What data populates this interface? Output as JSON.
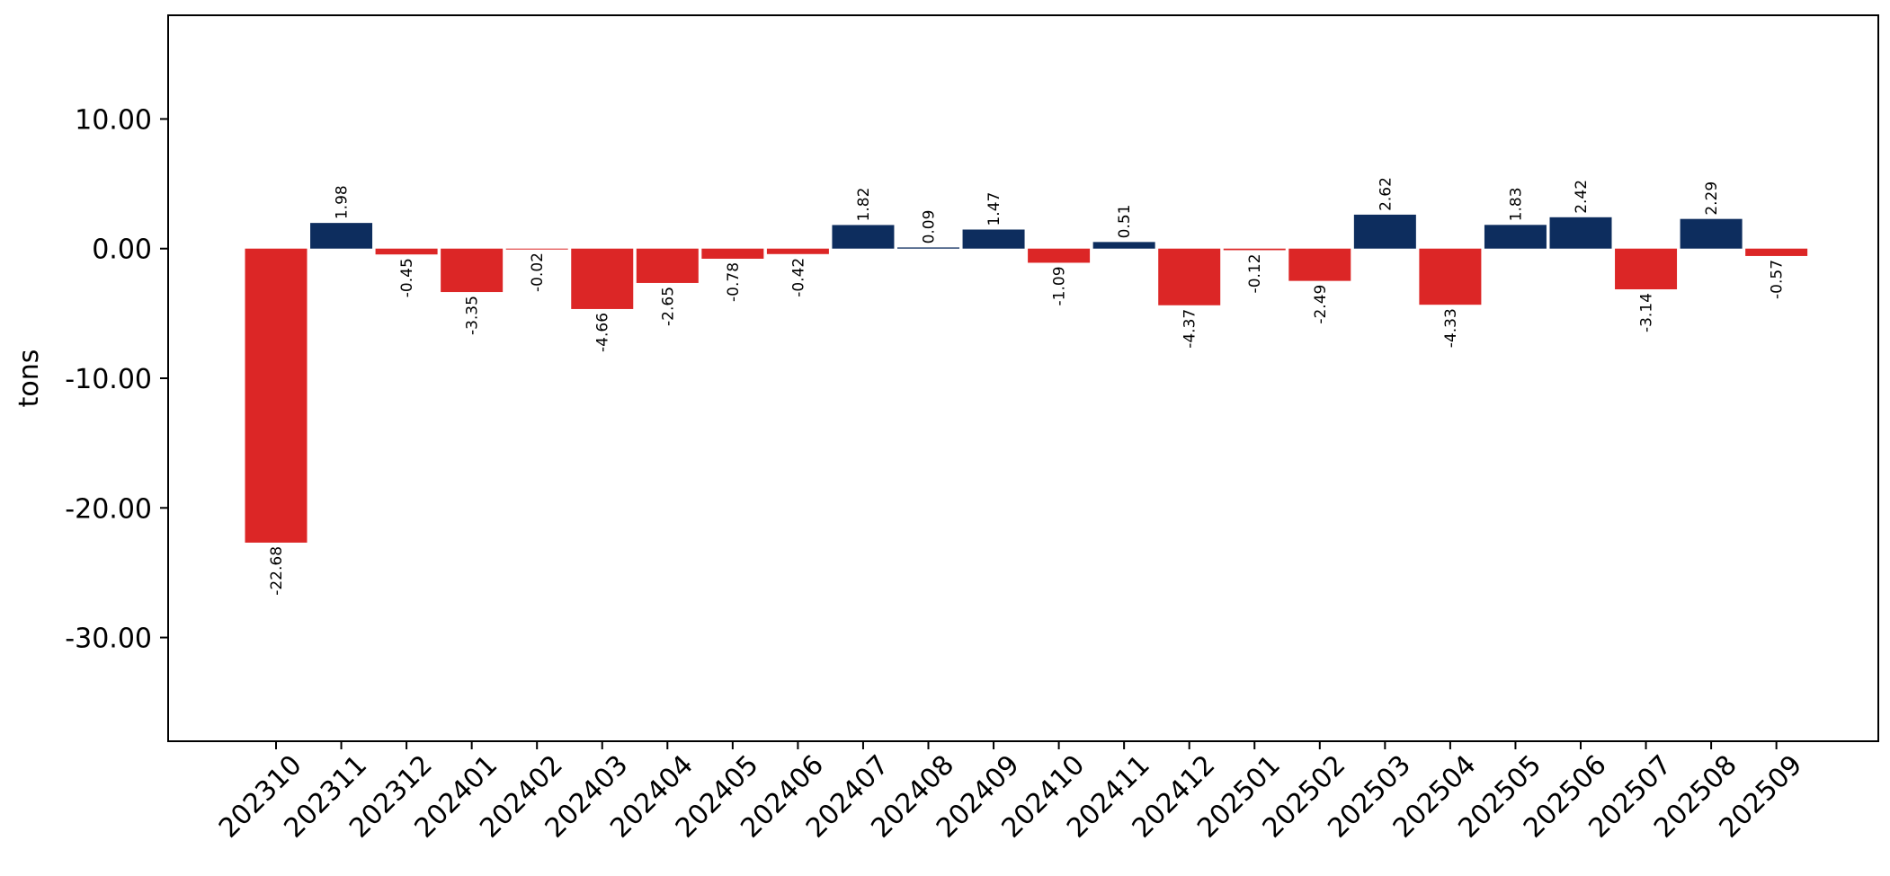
{
  "chart_data": {
    "type": "bar",
    "title": "",
    "xlabel": "",
    "ylabel": "tons",
    "ylim": [
      -38,
      18
    ],
    "yticks": [
      10,
      0,
      -10,
      -20,
      -30
    ],
    "ytick_labels": [
      "10.00",
      "0.00",
      "-10.00",
      "-20.00",
      "-30.00"
    ],
    "grid": false,
    "colors": {
      "positive": "#0d2d5e",
      "negative": "#dc2626"
    },
    "categories": [
      "202310",
      "202311",
      "202312",
      "202401",
      "202402",
      "202403",
      "202404",
      "202405",
      "202406",
      "202407",
      "202408",
      "202409",
      "202410",
      "202411",
      "202412",
      "202501",
      "202502",
      "202503",
      "202504",
      "202505",
      "202506",
      "202507",
      "202508",
      "202509"
    ],
    "values": [
      -22.68,
      1.98,
      -0.45,
      -3.35,
      -0.02,
      -4.66,
      -2.65,
      -0.78,
      -0.42,
      1.82,
      0.09,
      1.47,
      -1.09,
      0.51,
      -4.37,
      -0.12,
      -2.49,
      2.62,
      -4.33,
      1.83,
      2.42,
      -3.14,
      2.29,
      -0.57
    ],
    "data_labels": [
      "-22.68",
      "1.98",
      "-0.45",
      "-3.35",
      "-0.02",
      "-4.66",
      "-2.65",
      "-0.78",
      "-0.42",
      "1.82",
      "0.09",
      "1.47",
      "-1.09",
      "0.51",
      "-4.37",
      "-0.12",
      "-2.49",
      "2.62",
      "-4.33",
      "1.83",
      "2.42",
      "-3.14",
      "2.29",
      "-0.57"
    ]
  }
}
